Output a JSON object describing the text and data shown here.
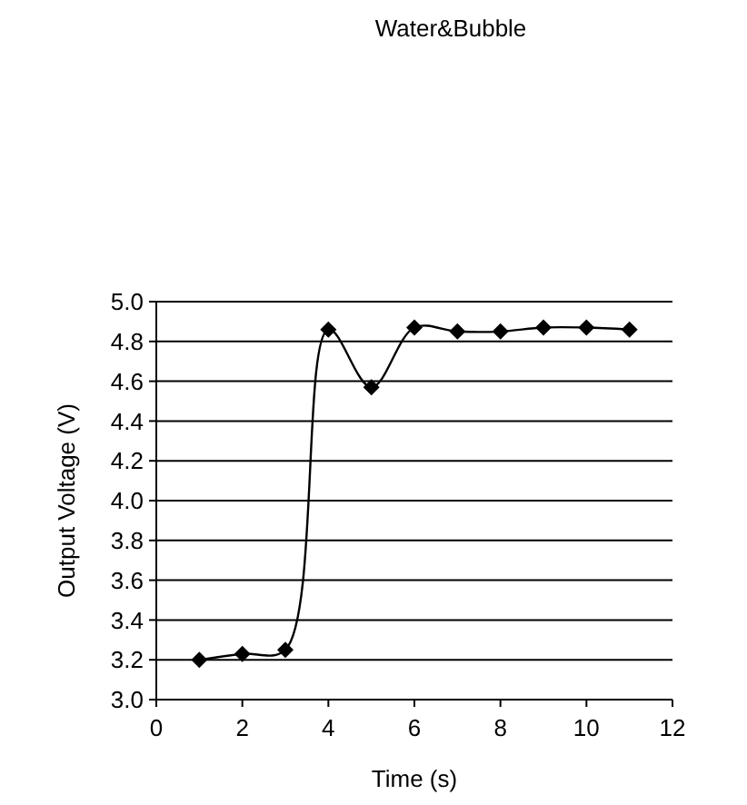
{
  "chart_data": {
    "type": "line",
    "title": "Water&Bubble",
    "xlabel": "Time (s)",
    "ylabel": "Output Voltage (V)",
    "x": [
      1,
      2,
      3,
      4,
      5,
      6,
      7,
      8,
      9,
      10,
      11
    ],
    "series": [
      {
        "color": "#000000",
        "values": [
          3.2,
          3.23,
          3.25,
          4.86,
          4.57,
          4.87,
          4.85,
          4.85,
          4.87,
          4.87,
          4.86
        ]
      }
    ],
    "xlim": [
      0,
      12
    ],
    "xticks": [
      0,
      2,
      4,
      6,
      8,
      10,
      12
    ],
    "ylim": [
      3.0,
      5.0
    ],
    "yticks": [
      {
        "value": 3,
        "label": "3.0"
      },
      3.2,
      3.4,
      3.6,
      3.8,
      {
        "value": 4,
        "label": "4.0"
      },
      4.2,
      4.4,
      4.6,
      4.8,
      {
        "value": 5,
        "label": "5.0"
      }
    ],
    "grid": "y",
    "marker": "diamond",
    "line_style": "solid"
  }
}
